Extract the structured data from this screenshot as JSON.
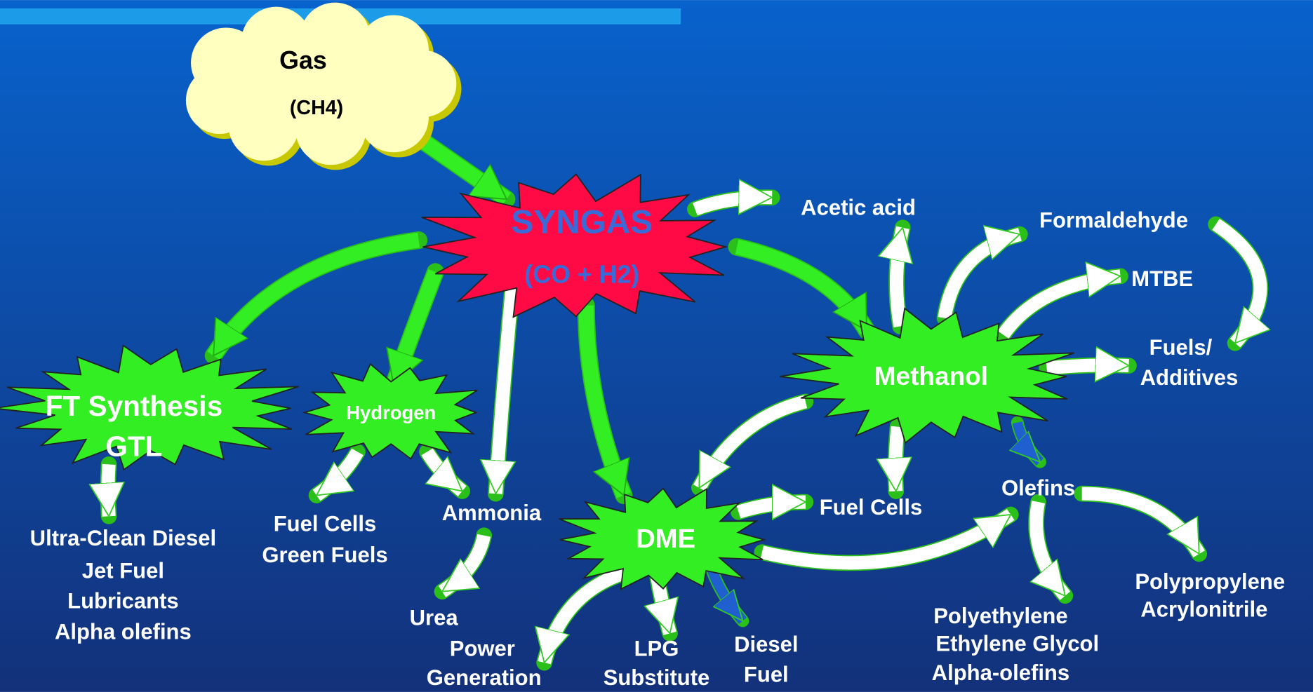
{
  "nodes": [
    {
      "lines": [
        "Gas",
        "(CH4)"
      ]
    },
    {
      "lines": [
        "SYNGAS",
        "(CO + H2)"
      ]
    },
    {
      "lines": [
        "FT Synthesis",
        "GTL"
      ]
    },
    {
      "lines": [
        "Hydrogen"
      ]
    },
    {
      "lines": [
        "Methanol"
      ]
    },
    {
      "lines": [
        "DME"
      ]
    }
  ],
  "products": [
    {
      "lines": [
        "Acetic acid"
      ]
    },
    {
      "lines": [
        "Formaldehyde"
      ]
    },
    {
      "lines": [
        "MTBE"
      ]
    },
    {
      "lines": [
        "Fuels/",
        "Additives"
      ]
    },
    {
      "lines": [
        "Fuel Cells"
      ]
    },
    {
      "lines": [
        "Olefins"
      ]
    },
    {
      "lines": [
        "Polyethylene",
        "Ethylene Glycol",
        "Alpha-olefins"
      ]
    },
    {
      "lines": [
        "Polypropylene",
        "Acrylonitrile"
      ]
    },
    {
      "lines": [
        "Ultra-Clean Diesel",
        "Jet Fuel",
        "Lubricants",
        "Alpha olefins"
      ]
    },
    {
      "lines": [
        "Fuel Cells",
        "Green Fuels"
      ]
    },
    {
      "lines": [
        "Ammonia"
      ]
    },
    {
      "lines": [
        "Urea"
      ]
    },
    {
      "lines": [
        "Power",
        "Generation"
      ]
    },
    {
      "lines": [
        "LPG",
        "Substitute"
      ]
    },
    {
      "lines": [
        "Diesel",
        "Fuel"
      ]
    }
  ]
}
